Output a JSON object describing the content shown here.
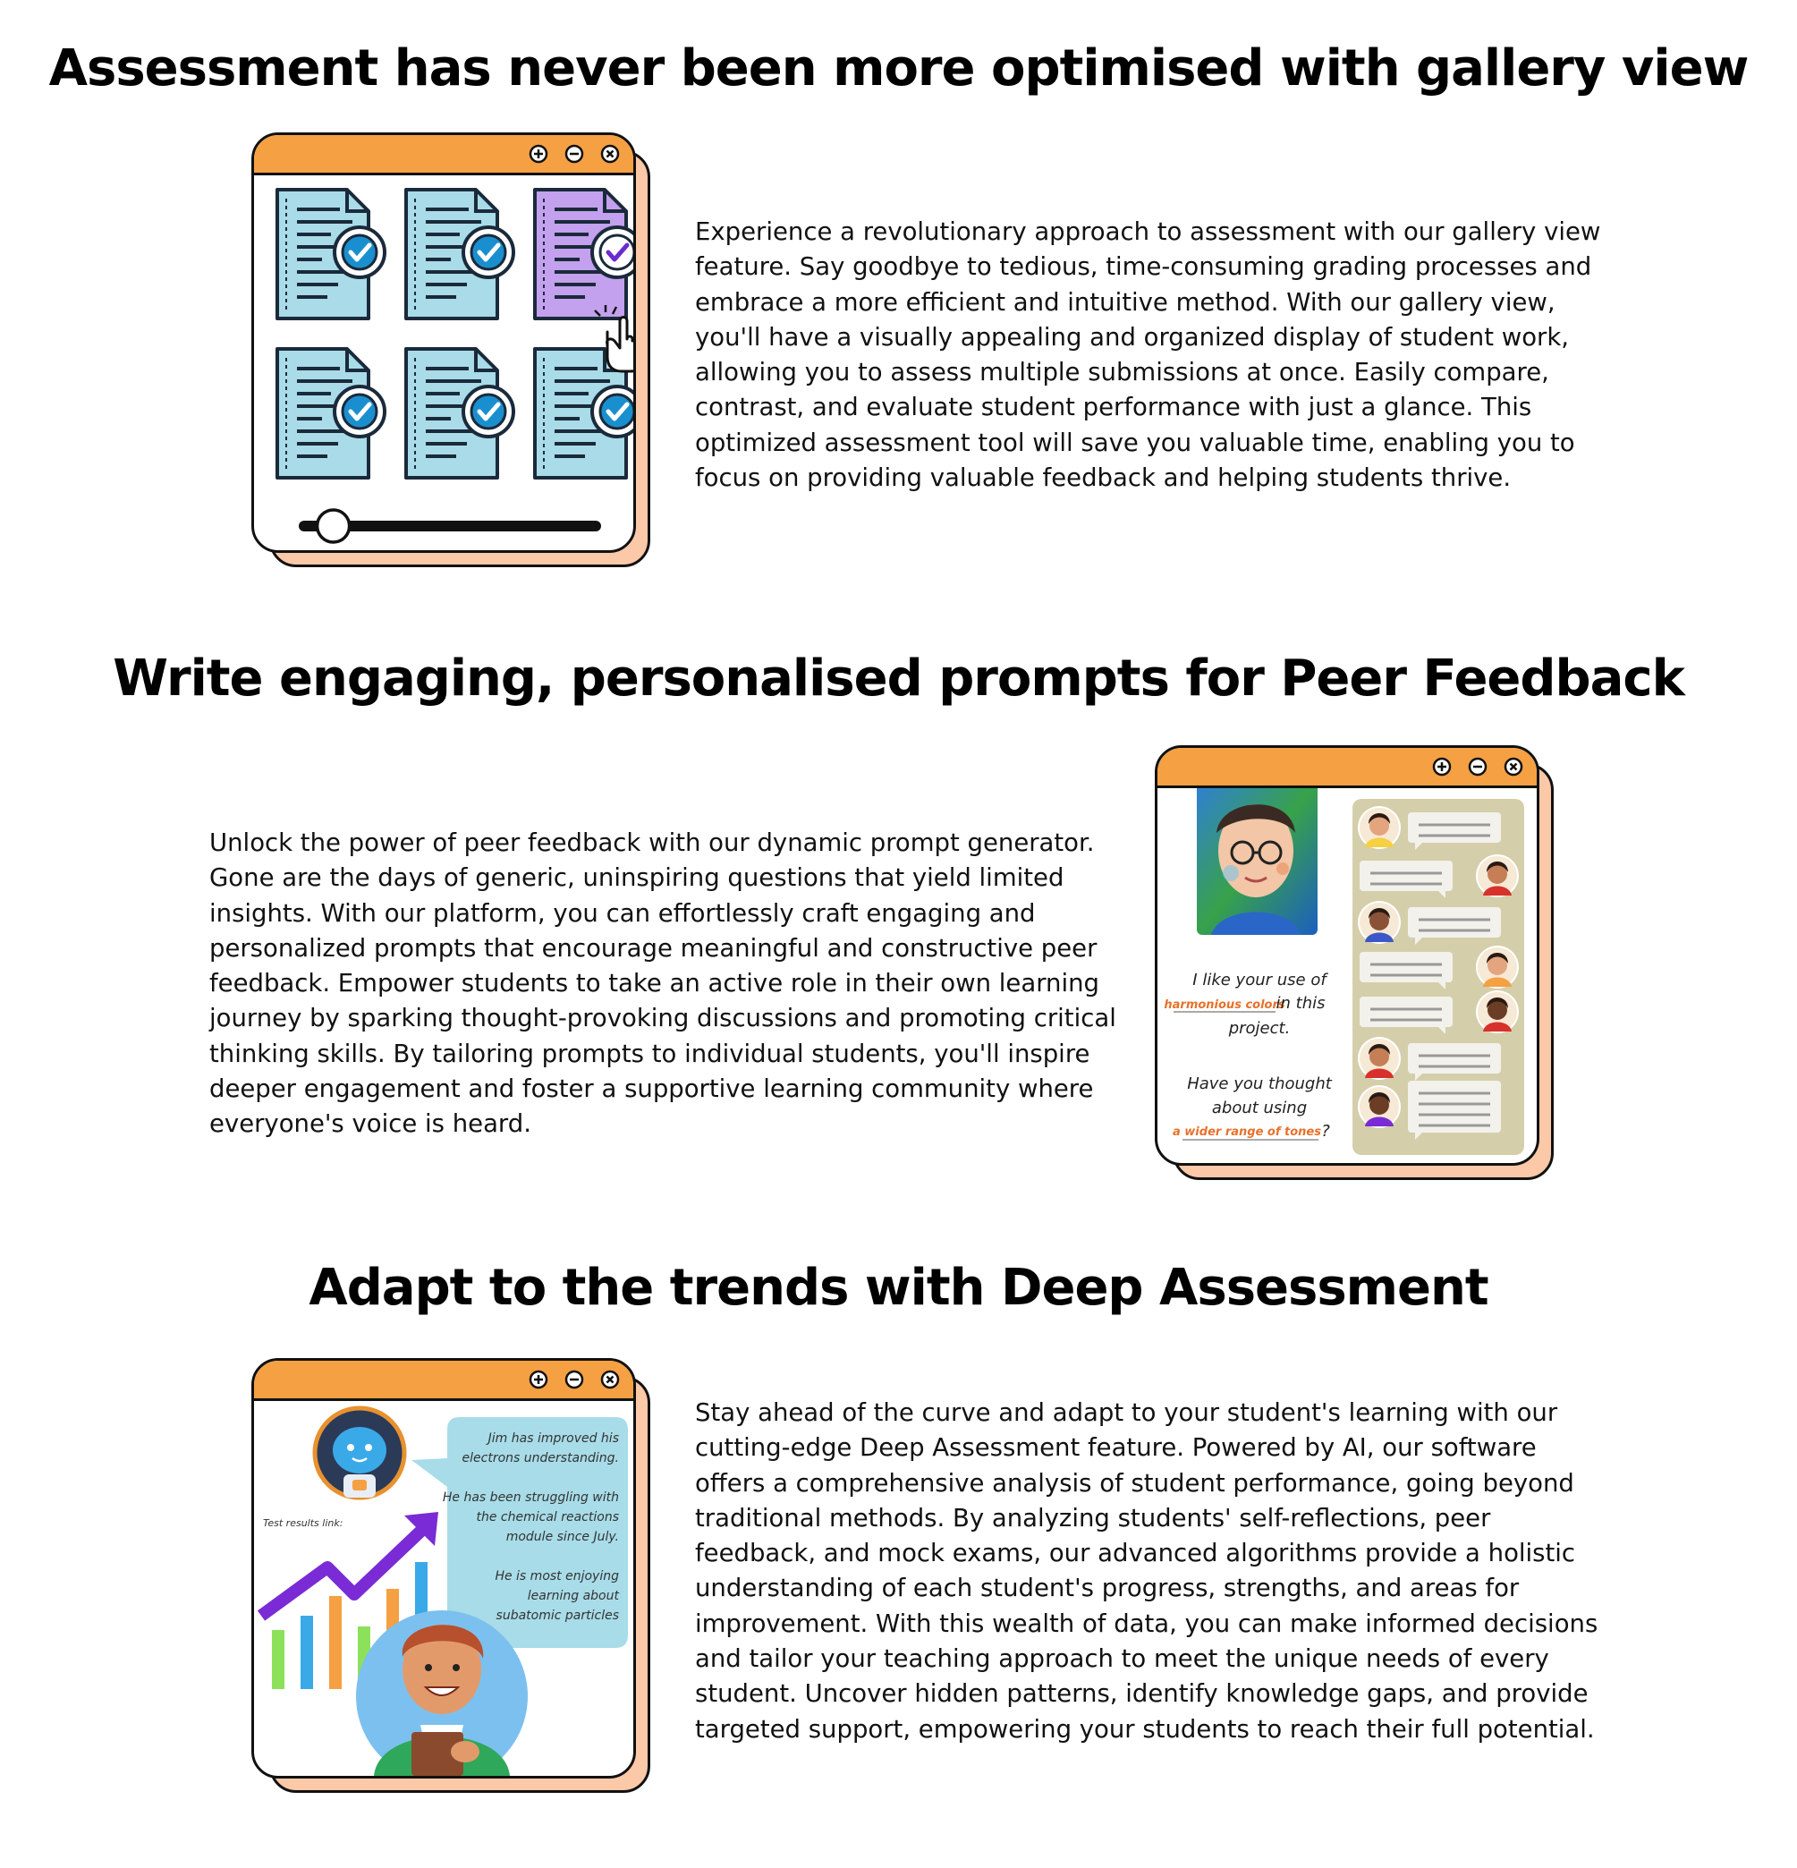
{
  "sections": [
    {
      "heading": "Assessment has never been more optimised with gallery view",
      "body": "Experience a revolutionary approach to assessment with our gallery view feature. Say goodbye to tedious, time-consuming grading processes and embrace a more efficient and intuitive method. With our gallery view, you'll have a visually appealing and organized display of student work, allowing you to assess multiple submissions at once. Easily compare, contrast, and evaluate student performance with just a glance. This optimized assessment tool will save you valuable time, enabling you to focus on providing valuable feedback and helping students thrive."
    },
    {
      "heading": "Write engaging, personalised prompts for Peer Feedback",
      "body": "Unlock the power of peer feedback with our dynamic prompt generator. Gone are the days of generic, uninspiring questions that yield limited insights. With our platform, you can effortlessly craft engaging and personalized prompts that encourage meaningful and constructive peer feedback. Empower students to take an active role in their own learning journey by sparking thought-provoking discussions and promoting critical thinking skills. By tailoring prompts to individual students, you'll inspire deeper engagement and foster a supportive learning community where everyone's voice is heard."
    },
    {
      "heading": "Adapt to the trends with Deep Assessment",
      "body": "Stay ahead of the curve and adapt to your student's learning with our cutting-edge Deep Assessment feature. Powered by AI, our software offers a comprehensive analysis of student performance, going beyond traditional methods. By analyzing students' self-reflections, peer feedback, and mock exams, our advanced algorithms provide a holistic understanding of each student's progress, strengths, and areas for improvement. With this wealth of data, you can make informed decisions and tailor your teaching approach to meet the unique needs of every student. Uncover hidden patterns, identify knowledge gaps, and provide targeted support, empowering your students to reach their full potential."
    }
  ],
  "feedback_illustration": {
    "line1": "I like your use of",
    "highlight1": "harmonious colors",
    "line2": "in this",
    "line3": "project.",
    "line4": "Have you thought",
    "line5": "about using",
    "highlight2": "a wider range of tones",
    "end_mark": "?"
  },
  "ai_illustration": {
    "bubble_line1": "Jim has improved his",
    "bubble_line2": "electrons understanding.",
    "bubble_line3": "He has been struggling with",
    "bubble_line4": "the chemical reactions",
    "bubble_line5": "module since July.",
    "bubble_line6": "He is most enjoying",
    "bubble_line7": "learning about",
    "bubble_line8": "subatomic particles",
    "test_results_label": "Test results link:"
  },
  "icons": {
    "window_controls": [
      "plus-circle-icon",
      "minus-circle-icon",
      "close-circle-icon"
    ]
  },
  "colors": {
    "window_bar": "#f5a042",
    "window_shadow": "#fbc8a8",
    "document_fill": "#a9dbe8",
    "document_selected": "#c3a1ee",
    "check_badge": "#1a8fd0",
    "highlight_text": "#e8712a",
    "chat_panel": "#d4cfaa",
    "ai_bubble": "#a8dce8",
    "trend_arrow": "#7a2bd6"
  },
  "gallery": {
    "documents_total": 6,
    "selected_document": 3,
    "slider_level": 0.1
  }
}
